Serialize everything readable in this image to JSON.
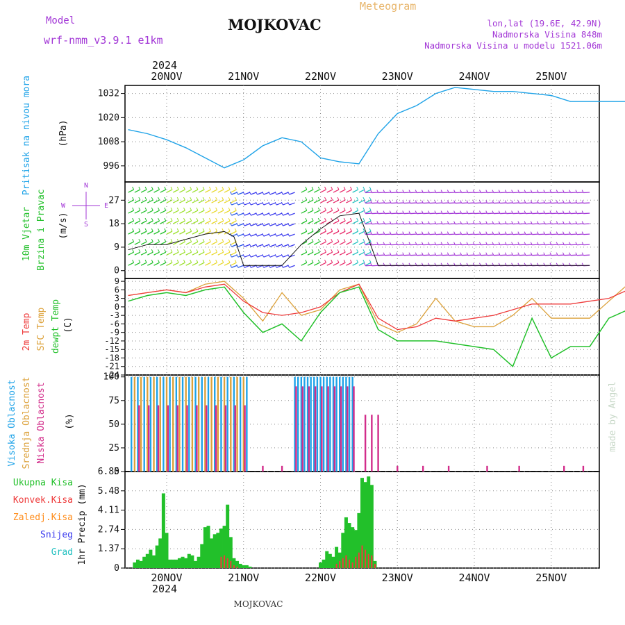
{
  "header": {
    "model_label": "Model",
    "model_name": "wrf-nmm_v3.9.1 e1km",
    "station": "MOJKOVAC",
    "meteogram": "Meteogram",
    "lonlat": "lon,lat (19.6E, 42.9N)",
    "elevation": "Nadmorska Visina 848m",
    "model_elevation": "Nadmorska Visina u modelu 1521.06m",
    "footer_station": "MOJKOVAC",
    "credit": "made by Angel"
  },
  "colors": {
    "pressure": "#1fa3e8",
    "wind_title": "#22c02a",
    "wind_dir": "#a236d6",
    "temp_2m": "#ee3b3b",
    "temp_sfc": "#dca13a",
    "temp_dew": "#22c02a",
    "cloud_high": "#1fa3e8",
    "cloud_mid": "#dca13a",
    "cloud_low": "#d22c8a",
    "precip_total": "#22c02a",
    "precip_conv": "#ee3b3b",
    "precip_frz": "#ff8c1a",
    "precip_snow": "#3a3aee",
    "precip_grad": "#22c0c0"
  },
  "chart_data": [
    {
      "type": "line",
      "panel": "pressure",
      "ylabel_title": "Pritisak na nivou mora",
      "ylabel_unit": "(hPa)",
      "yticks": [
        "996",
        "1008",
        "1020",
        "1032"
      ],
      "ylim": [
        988,
        1036
      ],
      "x_unit": "hours since 20NOV 00",
      "x_year": "2024",
      "x_ticks": [
        "20NOV",
        "21NOV",
        "22NOV",
        "23NOV",
        "24NOV",
        "25NOV"
      ],
      "x": [
        -12,
        -6,
        0,
        6,
        12,
        18,
        24,
        30,
        36,
        42,
        48,
        54,
        60,
        66,
        72,
        78,
        84,
        90,
        96,
        102,
        108,
        114,
        120,
        126,
        132,
        138,
        144
      ],
      "series": [
        {
          "values": [
            1014,
            1012,
            1009,
            1005,
            1000,
            995,
            999,
            1006,
            1010,
            1008,
            1000,
            998,
            997,
            1012,
            1022,
            1026,
            1032,
            1035,
            1034,
            1033,
            1033,
            1032,
            1031,
            1028,
            1028,
            1028,
            1028
          ]
        }
      ]
    },
    {
      "type": "line",
      "panel": "wind",
      "ylabel_title": "10m Vjetar",
      "ylabel_title2": "Brzina i Pravac",
      "ylabel_unit": "(m/s)",
      "compass_n": "N",
      "compass_s": "S",
      "compass_e": "E",
      "compass_w": "W",
      "yticks": [
        "0",
        "9",
        "18",
        "27"
      ],
      "ylim": [
        -3,
        34
      ],
      "x": [
        -12,
        -6,
        0,
        6,
        12,
        18,
        21,
        24,
        30,
        36,
        42,
        48,
        54,
        60,
        66,
        72,
        78,
        84,
        90,
        96,
        102,
        108,
        114,
        120,
        126,
        132
      ],
      "series": [
        {
          "values": [
            8,
            10,
            10,
            12,
            14,
            15,
            13,
            2,
            2,
            2,
            10,
            16,
            21,
            22,
            2,
            2,
            2,
            2,
            2,
            2,
            2,
            2,
            2,
            2,
            2,
            2
          ]
        }
      ]
    },
    {
      "type": "line",
      "panel": "temperature",
      "ylabel_title_2m": "2m Temp",
      "ylabel_title_sfc": "SFC Temp",
      "ylabel_title_dew": "dewpt Temp",
      "ylabel_unit": "(C)",
      "yticks": [
        "-24",
        "-21",
        "-18",
        "-15",
        "-12",
        "-9",
        "-6",
        "-3",
        "0",
        "3",
        "6",
        "9"
      ],
      "ylim": [
        -24,
        10
      ],
      "x": [
        -12,
        -6,
        0,
        6,
        12,
        18,
        24,
        30,
        36,
        42,
        48,
        54,
        60,
        66,
        72,
        78,
        84,
        90,
        96,
        102,
        108,
        114,
        120,
        126,
        132,
        138,
        144
      ],
      "series": [
        {
          "values": [
            4,
            5,
            6,
            5,
            7,
            8,
            2,
            -2,
            -3,
            -2,
            0,
            5,
            8,
            -4,
            -8,
            -7,
            -4,
            -5,
            -4,
            -3,
            -1,
            1,
            1,
            1,
            2,
            3,
            6
          ]
        },
        {
          "values": [
            4,
            5,
            6,
            5,
            8,
            9,
            3,
            -5,
            5,
            -3,
            -1,
            6,
            8,
            -6,
            -9,
            -6,
            3,
            -5,
            -7,
            -7,
            -3,
            3,
            -4,
            -4,
            -4,
            2,
            8
          ]
        },
        {
          "values": [
            2,
            4,
            5,
            4,
            6,
            7,
            -2,
            -9,
            -6,
            -12,
            -2,
            5,
            7,
            -8,
            -12,
            -12,
            -12,
            -13,
            -14,
            -15,
            -21,
            -4,
            -18,
            -14,
            -14,
            -4,
            -1
          ]
        }
      ]
    },
    {
      "type": "bar",
      "panel": "clouds",
      "ylabel_high": "Visoka Oblacnost",
      "ylabel_mid": "Srednja Oblacnost",
      "ylabel_low": "Niska Oblacnost",
      "ylabel_unit": "(%)",
      "yticks": [
        "0",
        "25",
        "50",
        "75",
        "100"
      ],
      "ylim": [
        0,
        102
      ]
    },
    {
      "type": "bar",
      "panel": "precip",
      "legend_total": "Ukupna Kisa",
      "legend_conv": "Konvek.Kisa",
      "legend_frz": "Zaledj.Kisa",
      "legend_snow": "Snijeg",
      "legend_grad": "Grad",
      "ylabel": "1hr Precip (mm)",
      "yticks": [
        "0",
        "1.37",
        "2.74",
        "4.11",
        "5.48",
        "6.85"
      ],
      "ylim": [
        0,
        6.85
      ],
      "bottom_ticks": [
        "20NOV",
        "21NOV",
        "22NOV",
        "23NOV",
        "24NOV",
        "25NOV"
      ],
      "bottom_year": "2024",
      "x": [
        -10,
        -9,
        -8,
        -7,
        -6,
        -5,
        -4,
        -3,
        -2,
        -1,
        0,
        1,
        2,
        3,
        4,
        5,
        6,
        7,
        8,
        9,
        10,
        11,
        12,
        13,
        14,
        15,
        16,
        17,
        18,
        19,
        20,
        21,
        22,
        23,
        24,
        25,
        26,
        48,
        49,
        50,
        51,
        52,
        53,
        54,
        55,
        56,
        57,
        58,
        59,
        60,
        61,
        62,
        63,
        64,
        65
      ],
      "series": [
        {
          "name": "Ukupna Kisa",
          "values": [
            0.4,
            0.6,
            0.5,
            0.8,
            1.0,
            1.3,
            0.9,
            1.6,
            2.1,
            5.3,
            2.5,
            0.6,
            0.6,
            0.6,
            0.7,
            0.8,
            0.7,
            1.0,
            0.9,
            0.5,
            0.8,
            1.7,
            2.9,
            3.0,
            2.1,
            2.4,
            2.5,
            2.8,
            3.0,
            4.5,
            2.2,
            0.7,
            0.5,
            0.3,
            0.2,
            0.2,
            0.1,
            0.4,
            0.6,
            1.2,
            1.0,
            0.8,
            1.5,
            1.1,
            2.5,
            3.6,
            3.2,
            2.9,
            2.7,
            3.9,
            6.4,
            6.1,
            6.5,
            5.9,
            0.5
          ]
        },
        {
          "name": "Konvek.Kisa",
          "values": [
            0,
            0,
            0,
            0,
            0,
            0,
            0,
            0,
            0,
            0,
            0,
            0,
            0,
            0,
            0,
            0,
            0,
            0,
            0,
            0,
            0,
            0,
            0,
            0,
            0,
            0,
            0,
            0.8,
            0.9,
            0.7,
            0.5,
            0.2,
            0.1,
            0,
            0,
            0,
            0,
            0,
            0,
            0,
            0,
            0,
            0.3,
            0.5,
            0.7,
            0.9,
            0.6,
            0.4,
            0.8,
            1.1,
            1.6,
            1.3,
            1.0,
            0.9,
            0.3
          ]
        }
      ]
    }
  ]
}
